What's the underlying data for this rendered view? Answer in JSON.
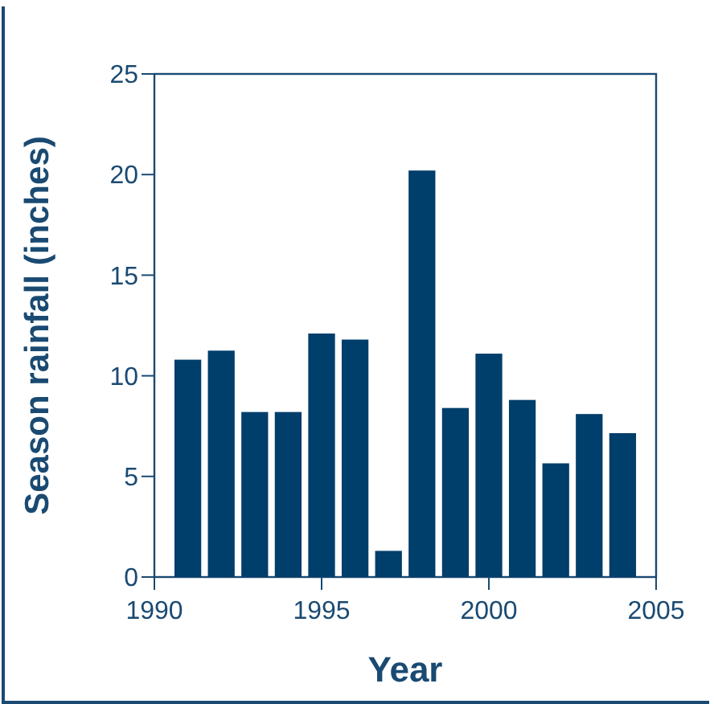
{
  "chart_data": {
    "type": "bar",
    "xlabel": "Year",
    "ylabel": "Season rainfall (inches)",
    "x": [
      1991,
      1992,
      1993,
      1994,
      1995,
      1996,
      1997,
      1998,
      1999,
      2000,
      2001,
      2002,
      2003,
      2004
    ],
    "values": [
      10.8,
      11.25,
      8.2,
      8.2,
      12.1,
      11.8,
      1.3,
      20.2,
      8.4,
      11.1,
      8.8,
      5.65,
      8.1,
      7.15
    ],
    "color": "#003e6b",
    "xlim": [
      1990,
      2005
    ],
    "xticks": [
      1990,
      1995,
      2000,
      2005
    ],
    "ylim": [
      0,
      25
    ],
    "yticks": [
      0,
      5,
      10,
      15,
      20,
      25
    ],
    "grid": false
  }
}
